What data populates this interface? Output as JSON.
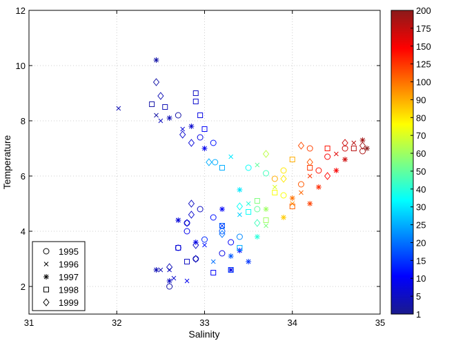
{
  "chart_data": {
    "type": "scatter",
    "xlabel": "Salinity",
    "ylabel": "Temperature",
    "xlim": [
      31,
      35
    ],
    "ylim": [
      1,
      12
    ],
    "xticks": [
      31,
      32,
      33,
      34,
      35
    ],
    "yticks": [
      2,
      4,
      6,
      8,
      10,
      12
    ],
    "grid": true,
    "legend_position": "lower-left",
    "colorbar": {
      "ticks": [
        1,
        5,
        10,
        15,
        20,
        25,
        30,
        40,
        50,
        60,
        70,
        80,
        90,
        100,
        125,
        150,
        175,
        200
      ],
      "colors": [
        "#1a1a8c",
        "#0000ff",
        "#0080ff",
        "#00ffff",
        "#80ff80",
        "#ffff00",
        "#ff8000",
        "#ff0000",
        "#8b1a1a"
      ]
    },
    "series": [
      {
        "name": "1995",
        "marker": "circle",
        "points": [
          [
            32.7,
            8.2,
            3
          ],
          [
            32.95,
            7.4,
            8
          ],
          [
            33.1,
            7.2,
            12
          ],
          [
            33.12,
            6.5,
            25
          ],
          [
            33.5,
            6.3,
            35
          ],
          [
            33.7,
            6.1,
            45
          ],
          [
            33.9,
            6.2,
            80
          ],
          [
            34.2,
            7.0,
            120
          ],
          [
            34.4,
            6.7,
            150
          ],
          [
            34.6,
            7.0,
            170
          ],
          [
            34.8,
            6.9,
            185
          ],
          [
            32.95,
            4.8,
            5
          ],
          [
            33.1,
            4.5,
            12
          ],
          [
            33.2,
            4.0,
            18
          ],
          [
            33.3,
            3.6,
            10
          ],
          [
            33.2,
            3.2,
            8
          ],
          [
            32.9,
            3.0,
            5
          ],
          [
            32.7,
            3.4,
            7
          ],
          [
            32.6,
            2.0,
            3
          ],
          [
            32.8,
            4.3,
            6
          ],
          [
            33.6,
            4.8,
            50
          ],
          [
            33.9,
            5.3,
            75
          ],
          [
            34.1,
            5.7,
            110
          ],
          [
            33.4,
            3.8,
            22
          ],
          [
            33.0,
            3.7,
            14
          ],
          [
            33.8,
            5.9,
            90
          ],
          [
            34.3,
            6.2,
            140
          ],
          [
            32.8,
            4.0,
            9
          ]
        ]
      },
      {
        "name": "1996",
        "marker": "x",
        "points": [
          [
            32.02,
            8.45,
            4
          ],
          [
            32.45,
            8.2,
            3
          ],
          [
            32.5,
            8.0,
            5
          ],
          [
            32.75,
            7.7,
            7
          ],
          [
            32.5,
            2.6,
            4
          ],
          [
            32.65,
            2.3,
            6
          ],
          [
            32.8,
            2.2,
            9
          ],
          [
            32.7,
            4.4,
            8
          ],
          [
            33.2,
            4.2,
            15
          ],
          [
            33.5,
            5.0,
            40
          ],
          [
            33.8,
            5.6,
            70
          ],
          [
            34.0,
            5.0,
            95
          ],
          [
            34.2,
            6.0,
            125
          ],
          [
            34.5,
            6.8,
            160
          ],
          [
            33.3,
            6.7,
            30
          ],
          [
            33.6,
            6.4,
            50
          ],
          [
            33.0,
            3.5,
            12
          ],
          [
            33.4,
            4.6,
            28
          ],
          [
            33.7,
            4.2,
            55
          ],
          [
            34.1,
            5.4,
            105
          ],
          [
            34.7,
            7.2,
            180
          ],
          [
            32.6,
            2.6,
            5
          ],
          [
            33.1,
            2.9,
            20
          ]
        ]
      },
      {
        "name": "1997",
        "marker": "star",
        "points": [
          [
            32.45,
            10.2,
            3
          ],
          [
            32.6,
            8.1,
            4
          ],
          [
            32.85,
            7.8,
            6
          ],
          [
            32.7,
            4.4,
            7
          ],
          [
            33.0,
            7.0,
            9
          ],
          [
            33.2,
            4.8,
            10
          ],
          [
            33.4,
            3.3,
            12
          ],
          [
            33.3,
            2.6,
            8
          ],
          [
            33.5,
            2.9,
            15
          ],
          [
            33.4,
            5.5,
            30
          ],
          [
            33.7,
            4.8,
            60
          ],
          [
            34.0,
            5.2,
            100
          ],
          [
            34.3,
            5.6,
            130
          ],
          [
            34.6,
            6.6,
            170
          ],
          [
            34.8,
            7.3,
            190
          ],
          [
            32.6,
            2.2,
            5
          ],
          [
            32.45,
            2.6,
            4
          ],
          [
            32.9,
            3.6,
            10
          ],
          [
            33.6,
            3.8,
            40
          ],
          [
            33.9,
            4.5,
            85
          ],
          [
            34.2,
            5.0,
            120
          ],
          [
            34.5,
            6.2,
            150
          ],
          [
            34.85,
            7.0,
            200
          ],
          [
            33.3,
            3.1,
            18
          ]
        ]
      },
      {
        "name": "1998",
        "marker": "square",
        "points": [
          [
            32.4,
            8.6,
            3
          ],
          [
            32.55,
            8.5,
            4
          ],
          [
            32.9,
            9.0,
            5
          ],
          [
            32.9,
            8.7,
            6
          ],
          [
            32.95,
            8.2,
            8
          ],
          [
            33.0,
            7.7,
            10
          ],
          [
            33.2,
            6.3,
            25
          ],
          [
            32.8,
            2.9,
            5
          ],
          [
            33.1,
            2.5,
            10
          ],
          [
            33.3,
            2.6,
            15
          ],
          [
            33.6,
            5.1,
            55
          ],
          [
            34.0,
            6.6,
            90
          ],
          [
            34.4,
            7.0,
            140
          ],
          [
            34.7,
            7.0,
            180
          ],
          [
            33.2,
            4.2,
            18
          ],
          [
            33.5,
            4.7,
            35
          ],
          [
            33.8,
            5.4,
            75
          ],
          [
            34.2,
            6.3,
            125
          ],
          [
            32.7,
            3.4,
            7
          ],
          [
            33.4,
            3.4,
            25
          ],
          [
            34.0,
            4.9,
            105
          ],
          [
            33.7,
            4.4,
            60
          ]
        ]
      },
      {
        "name": "1999",
        "marker": "diamond",
        "points": [
          [
            32.45,
            9.4,
            3
          ],
          [
            32.5,
            8.9,
            4
          ],
          [
            32.75,
            7.5,
            6
          ],
          [
            32.85,
            7.2,
            7
          ],
          [
            33.05,
            6.5,
            25
          ],
          [
            32.85,
            5.0,
            5
          ],
          [
            32.85,
            4.6,
            6
          ],
          [
            32.8,
            4.3,
            7
          ],
          [
            32.9,
            3.5,
            5
          ],
          [
            32.9,
            3.0,
            4
          ],
          [
            33.6,
            4.3,
            45
          ],
          [
            33.9,
            5.9,
            80
          ],
          [
            34.2,
            6.5,
            110
          ],
          [
            34.6,
            7.2,
            170
          ],
          [
            34.8,
            7.1,
            190
          ],
          [
            33.2,
            3.9,
            20
          ],
          [
            33.4,
            4.9,
            35
          ],
          [
            34.4,
            6.0,
            145
          ],
          [
            32.6,
            2.7,
            4
          ],
          [
            33.7,
            6.8,
            65
          ],
          [
            34.1,
            7.1,
            115
          ]
        ]
      }
    ]
  }
}
